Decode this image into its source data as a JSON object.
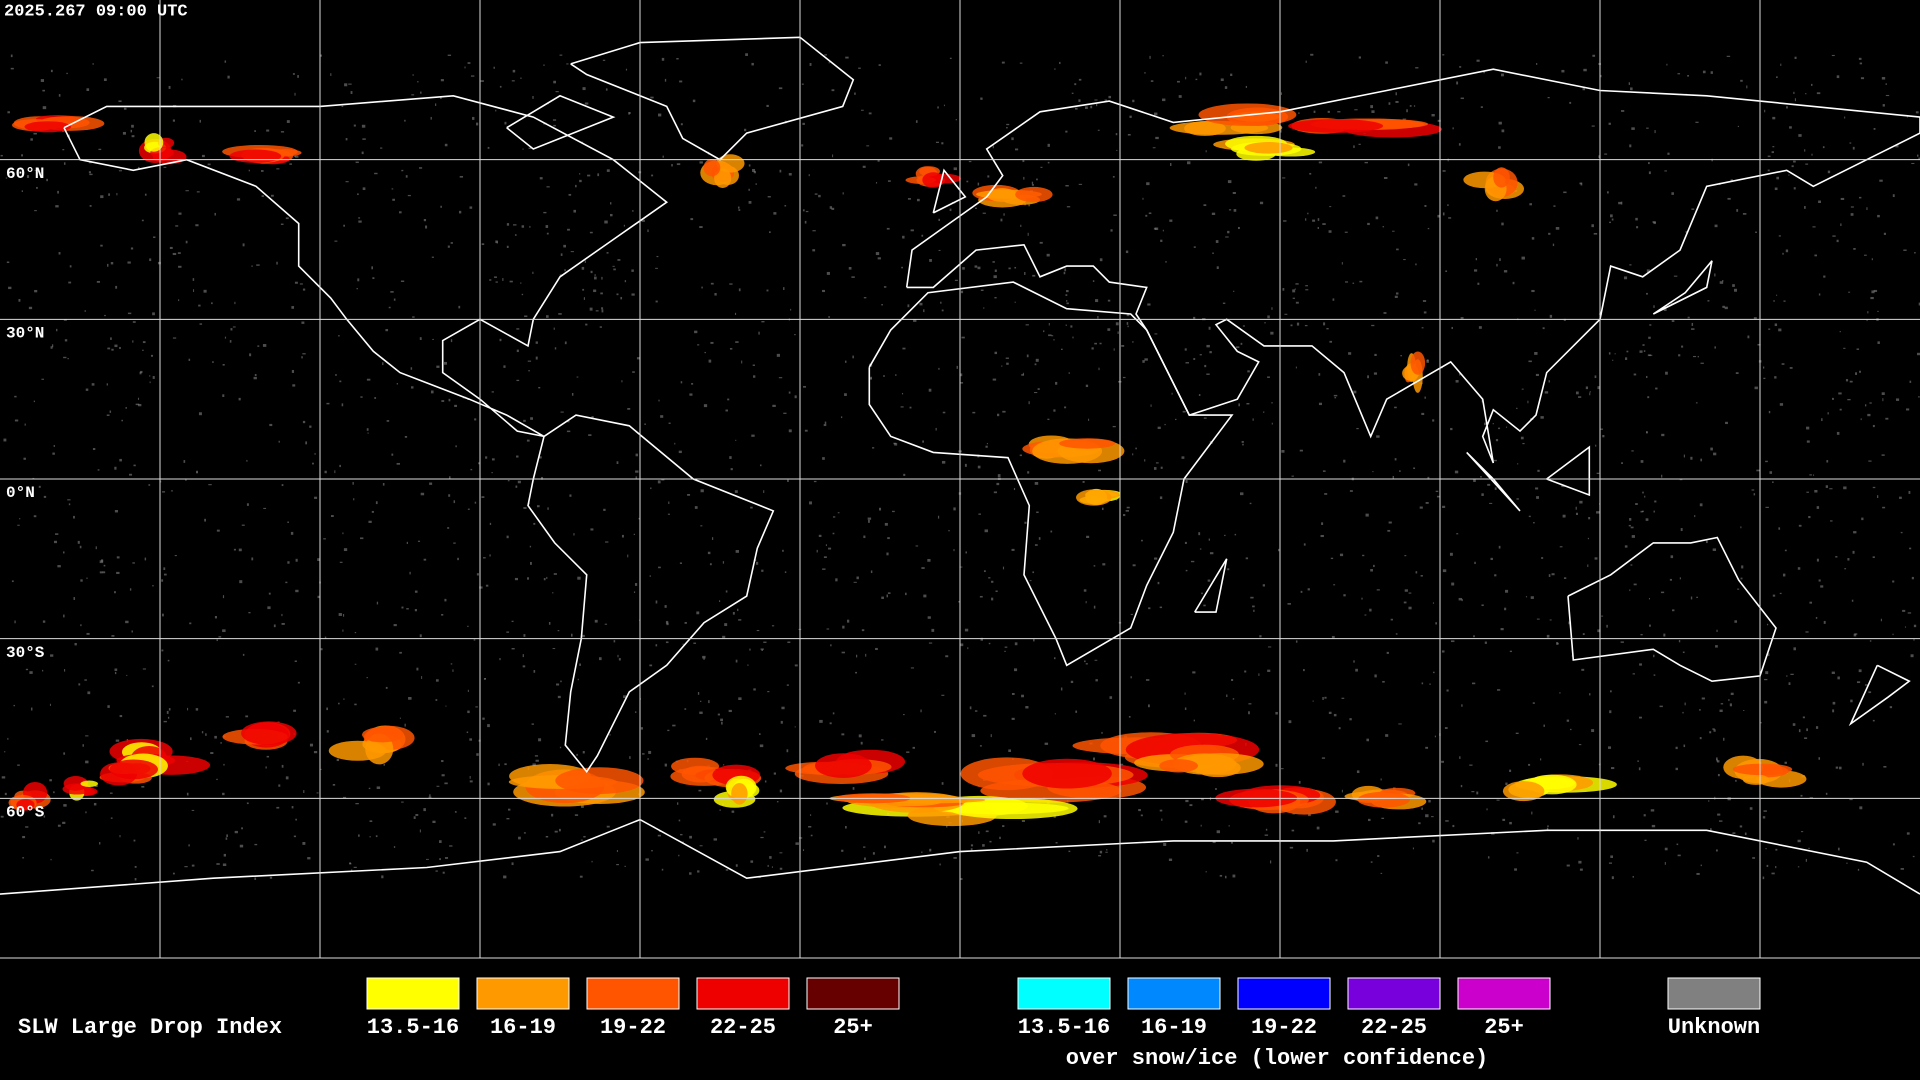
{
  "timestamp": "2025.267 09:00 UTC",
  "latitude_labels": [
    "60°N",
    "30°N",
    "0°N",
    "30°S",
    "60°S"
  ],
  "legend": {
    "title": "SLW Large Drop Index",
    "items": [
      {
        "label": "13.5-16",
        "color": "#ffff00"
      },
      {
        "label": "16-19",
        "color": "#ff9900"
      },
      {
        "label": "19-22",
        "color": "#ff5500"
      },
      {
        "label": "22-25",
        "color": "#ee0000"
      },
      {
        "label": "25+",
        "color": "#660000"
      }
    ],
    "snow_ice_items": [
      {
        "label": "13.5-16",
        "color": "#00ffff"
      },
      {
        "label": "16-19",
        "color": "#0088ff"
      },
      {
        "label": "19-22",
        "color": "#0000ff"
      },
      {
        "label": "22-25",
        "color": "#7700dd"
      },
      {
        "label": "25+",
        "color": "#cc00cc"
      }
    ],
    "snow_ice_caption": "over snow/ice (lower confidence)",
    "unknown": {
      "label": "Unknown",
      "color": "#808080"
    }
  }
}
